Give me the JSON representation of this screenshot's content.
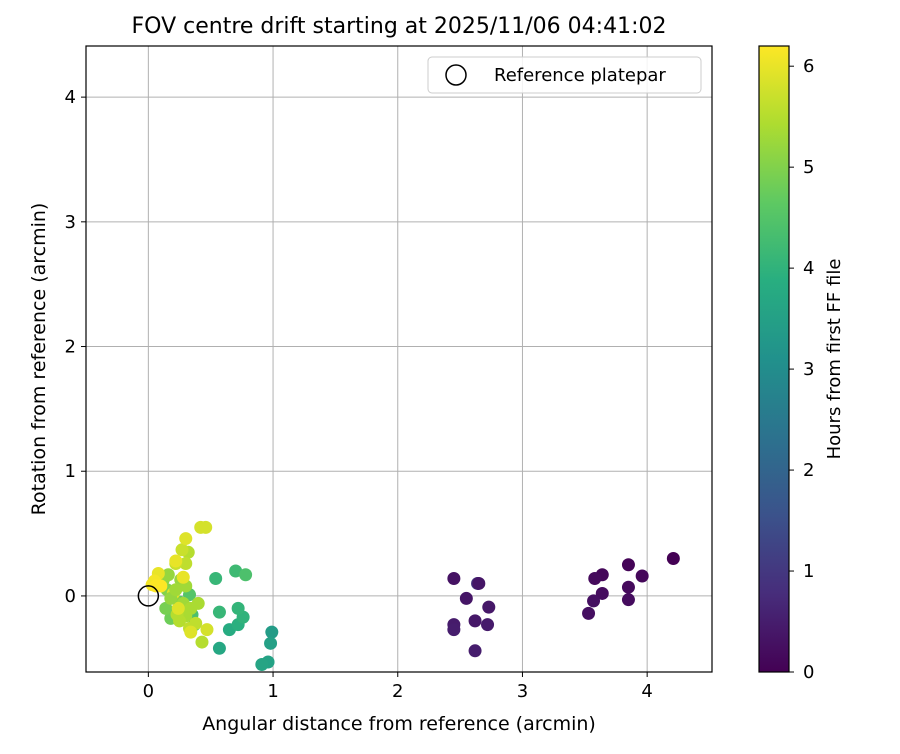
{
  "chart_data": {
    "type": "scatter",
    "title": "FOV centre drift starting at 2025/11/06 04:41:02",
    "xlabel": "Angular distance from reference (arcmin)",
    "ylabel": "Rotation from reference (arcmin)",
    "xlim": [
      -0.5,
      4.52
    ],
    "ylim": [
      -0.61,
      4.41
    ],
    "xticks": [
      0,
      1,
      2,
      3,
      4
    ],
    "yticks": [
      0,
      1,
      2,
      3,
      4
    ],
    "grid": true,
    "legend": {
      "placement": "top-right",
      "entries": [
        "Reference platepar"
      ]
    },
    "reference_point": {
      "x": 0,
      "y": 0,
      "label": "Reference platepar"
    },
    "colorbar": {
      "label": "Hours from first FF file",
      "colormap": "viridis",
      "range": [
        0,
        6.2
      ],
      "ticks": [
        0,
        1,
        2,
        3,
        4,
        5,
        6
      ]
    },
    "series": [
      {
        "points": [
          {
            "x": 4.21,
            "y": 0.3,
            "c": 0.0
          },
          {
            "x": 3.85,
            "y": 0.25,
            "c": 0.05
          },
          {
            "x": 3.96,
            "y": 0.16,
            "c": 0.1
          },
          {
            "x": 3.64,
            "y": 0.17,
            "c": 0.1
          },
          {
            "x": 3.58,
            "y": 0.14,
            "c": 0.15
          },
          {
            "x": 3.85,
            "y": 0.07,
            "c": 0.15
          },
          {
            "x": 3.64,
            "y": 0.02,
            "c": 0.2
          },
          {
            "x": 3.85,
            "y": -0.03,
            "c": 0.2
          },
          {
            "x": 3.57,
            "y": -0.04,
            "c": 0.25
          },
          {
            "x": 3.53,
            "y": -0.14,
            "c": 0.25
          },
          {
            "x": 2.45,
            "y": 0.14,
            "c": 0.3
          },
          {
            "x": 2.64,
            "y": 0.1,
            "c": 0.9
          },
          {
            "x": 2.65,
            "y": 0.1,
            "c": 0.35
          },
          {
            "x": 2.55,
            "y": -0.02,
            "c": 0.35
          },
          {
            "x": 2.73,
            "y": -0.09,
            "c": 0.4
          },
          {
            "x": 2.62,
            "y": -0.2,
            "c": 0.4
          },
          {
            "x": 2.72,
            "y": -0.23,
            "c": 0.45
          },
          {
            "x": 2.45,
            "y": -0.23,
            "c": 0.45
          },
          {
            "x": 2.45,
            "y": -0.27,
            "c": 0.5
          },
          {
            "x": 2.62,
            "y": -0.44,
            "c": 0.5
          },
          {
            "x": 0.99,
            "y": -0.29,
            "c": 3.4
          },
          {
            "x": 0.98,
            "y": -0.38,
            "c": 3.5
          },
          {
            "x": 0.96,
            "y": -0.53,
            "c": 3.55
          },
          {
            "x": 0.91,
            "y": -0.55,
            "c": 3.6
          },
          {
            "x": 0.57,
            "y": -0.42,
            "c": 3.7
          },
          {
            "x": 0.65,
            "y": -0.27,
            "c": 3.8
          },
          {
            "x": 0.72,
            "y": -0.23,
            "c": 3.9
          },
          {
            "x": 0.76,
            "y": -0.17,
            "c": 4.0
          },
          {
            "x": 0.72,
            "y": -0.1,
            "c": 4.05
          },
          {
            "x": 0.57,
            "y": -0.13,
            "c": 4.1
          },
          {
            "x": 0.54,
            "y": 0.14,
            "c": 4.1
          },
          {
            "x": 0.7,
            "y": 0.2,
            "c": 4.2
          },
          {
            "x": 0.78,
            "y": 0.17,
            "c": 4.4
          },
          {
            "x": 0.37,
            "y": -0.23,
            "c": 4.3
          },
          {
            "x": 0.35,
            "y": -0.15,
            "c": 4.4
          },
          {
            "x": 0.33,
            "y": 0.01,
            "c": 4.5
          },
          {
            "x": 0.25,
            "y": -0.05,
            "c": 4.6
          },
          {
            "x": 0.21,
            "y": -0.13,
            "c": 4.7
          },
          {
            "x": 0.18,
            "y": -0.18,
            "c": 4.8
          },
          {
            "x": 0.14,
            "y": -0.1,
            "c": 4.9
          },
          {
            "x": 0.2,
            "y": -0.01,
            "c": 5.0
          },
          {
            "x": 0.15,
            "y": 0.05,
            "c": 5.0
          },
          {
            "x": 0.12,
            "y": 0.13,
            "c": 5.1
          },
          {
            "x": 0.09,
            "y": 0.1,
            "c": 5.1
          },
          {
            "x": 0.16,
            "y": 0.17,
            "c": 5.2
          },
          {
            "x": 0.26,
            "y": 0.13,
            "c": 5.2
          },
          {
            "x": 0.3,
            "y": 0.08,
            "c": 5.3
          },
          {
            "x": 0.28,
            "y": -0.06,
            "c": 5.3
          },
          {
            "x": 0.34,
            "y": -0.1,
            "c": 5.4
          },
          {
            "x": 0.4,
            "y": -0.06,
            "c": 5.4
          },
          {
            "x": 0.3,
            "y": -0.16,
            "c": 5.4
          },
          {
            "x": 0.25,
            "y": -0.2,
            "c": 5.5
          },
          {
            "x": 0.23,
            "y": -0.15,
            "c": 5.5
          },
          {
            "x": 0.43,
            "y": -0.37,
            "c": 5.5
          },
          {
            "x": 0.33,
            "y": -0.26,
            "c": 5.6
          },
          {
            "x": 0.38,
            "y": -0.22,
            "c": 5.6
          },
          {
            "x": 0.32,
            "y": 0.35,
            "c": 5.5
          },
          {
            "x": 0.3,
            "y": 0.26,
            "c": 5.6
          },
          {
            "x": 0.22,
            "y": 0.26,
            "c": 5.7
          },
          {
            "x": 0.27,
            "y": 0.37,
            "c": 5.7
          },
          {
            "x": 0.42,
            "y": 0.55,
            "c": 5.8
          },
          {
            "x": 0.46,
            "y": 0.55,
            "c": 5.8
          },
          {
            "x": 0.3,
            "y": 0.46,
            "c": 5.9
          },
          {
            "x": 0.47,
            "y": -0.27,
            "c": 5.8
          },
          {
            "x": 0.34,
            "y": -0.29,
            "c": 5.9
          },
          {
            "x": 0.2,
            "y": 0.02,
            "c": 5.9
          },
          {
            "x": 0.24,
            "y": -0.1,
            "c": 5.9
          },
          {
            "x": 0.28,
            "y": 0.15,
            "c": 6.0
          },
          {
            "x": 0.22,
            "y": 0.28,
            "c": 6.0
          },
          {
            "x": 0.08,
            "y": 0.18,
            "c": 6.0
          },
          {
            "x": 0.05,
            "y": 0.12,
            "c": 6.1
          },
          {
            "x": 0.03,
            "y": 0.09,
            "c": 6.1
          },
          {
            "x": 0.06,
            "y": 0.08,
            "c": 6.2
          },
          {
            "x": 0.1,
            "y": 0.08,
            "c": 6.2
          },
          {
            "x": 0.18,
            "y": -0.02,
            "c": 5.2
          },
          {
            "x": 0.22,
            "y": 0.05,
            "c": 5.3
          }
        ]
      }
    ]
  }
}
